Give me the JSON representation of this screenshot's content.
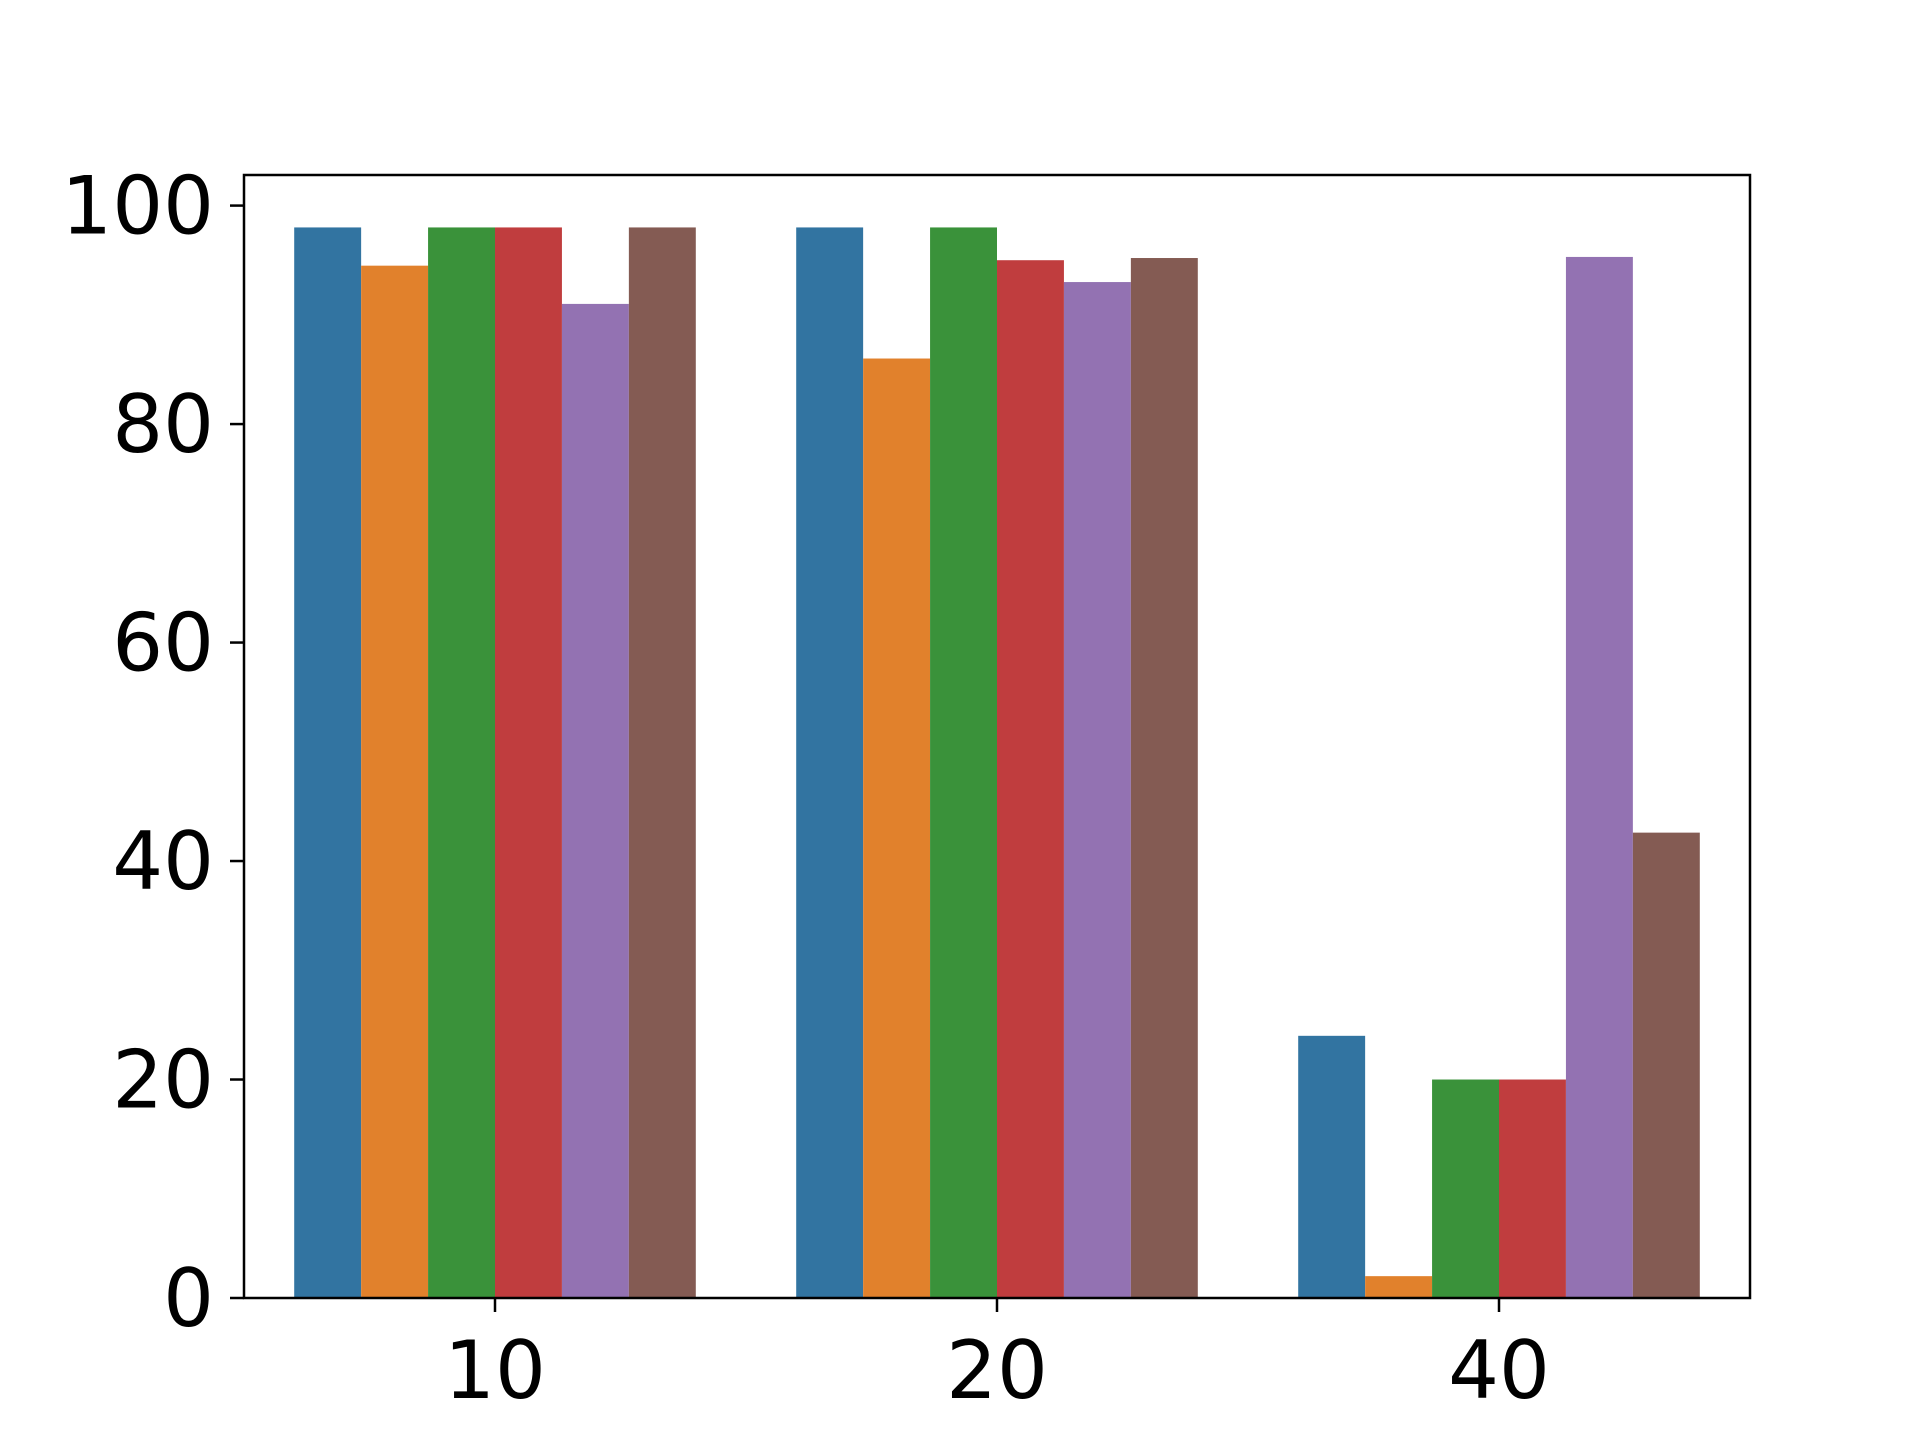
{
  "chart_data": {
    "type": "bar",
    "categories": [
      "10",
      "20",
      "40"
    ],
    "series": [
      {
        "color": "#3274a1",
        "values": [
          98,
          98,
          24
        ]
      },
      {
        "color": "#e1812c",
        "values": [
          94.5,
          86,
          2
        ]
      },
      {
        "color": "#3a923a",
        "values": [
          98,
          98,
          20
        ]
      },
      {
        "color": "#c03d3e",
        "values": [
          98,
          95,
          20
        ]
      },
      {
        "color": "#9372b2",
        "values": [
          91,
          93,
          95.3
        ]
      },
      {
        "color": "#845b53",
        "values": [
          98,
          95.2,
          42.6
        ]
      }
    ],
    "y_ticks": [
      0,
      20,
      40,
      60,
      80,
      100
    ],
    "ylim": [
      0,
      102.8
    ],
    "grid": false,
    "legend": "none"
  }
}
